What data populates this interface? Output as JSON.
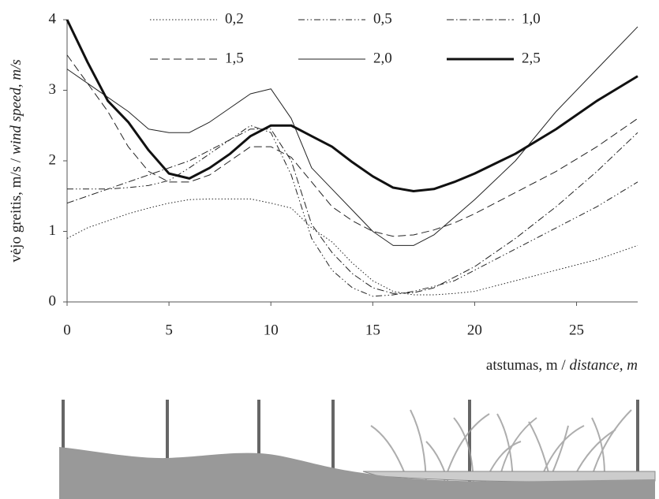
{
  "chart_data": {
    "type": "line",
    "ylabel": "vėjo greitis, m/s /",
    "ylabel_en": "wind speed, m/s",
    "xlabel": "atstumas, m /",
    "xlabel_en": "distance, m",
    "x": [
      0,
      1,
      2,
      3,
      4,
      5,
      6,
      7,
      8,
      9,
      10,
      11,
      12,
      13,
      14,
      15,
      16,
      17,
      18,
      19,
      20,
      22,
      24,
      26,
      28
    ],
    "xlim": [
      0,
      28
    ],
    "xticks": [
      0,
      5,
      10,
      15,
      20,
      25
    ],
    "ylim": [
      0,
      4
    ],
    "yticks": [
      0,
      1,
      2,
      3,
      4
    ],
    "series": [
      {
        "name": "0,2",
        "color": "#222",
        "width": 1,
        "dash": "1.5 2.5",
        "values": [
          0.9,
          1.05,
          1.15,
          1.25,
          1.33,
          1.4,
          1.45,
          1.46,
          1.46,
          1.46,
          1.4,
          1.33,
          1.05,
          0.85,
          0.55,
          0.3,
          0.15,
          0.1,
          0.1,
          0.12,
          0.15,
          0.3,
          0.45,
          0.6,
          0.8
        ]
      },
      {
        "name": "0,5",
        "color": "#222",
        "width": 1,
        "dash": "8 3 1.5 3 1.5 3",
        "values": [
          1.6,
          1.6,
          1.6,
          1.62,
          1.65,
          1.72,
          1.9,
          2.1,
          2.3,
          2.5,
          2.4,
          1.8,
          0.9,
          0.45,
          0.2,
          0.08,
          0.1,
          0.15,
          0.22,
          0.3,
          0.45,
          0.75,
          1.05,
          1.35,
          1.7
        ]
      },
      {
        "name": "1,0",
        "color": "#222",
        "width": 1,
        "dash": "9 3 1.5 3",
        "values": [
          1.4,
          1.5,
          1.6,
          1.7,
          1.8,
          1.9,
          2.0,
          2.15,
          2.3,
          2.45,
          2.45,
          2.0,
          1.1,
          0.7,
          0.4,
          0.2,
          0.12,
          0.13,
          0.2,
          0.35,
          0.5,
          0.9,
          1.35,
          1.85,
          2.4
        ]
      },
      {
        "name": "1,5",
        "color": "#222",
        "width": 1,
        "dash": "10 5",
        "values": [
          3.5,
          3.1,
          2.7,
          2.2,
          1.85,
          1.7,
          1.7,
          1.8,
          2.0,
          2.2,
          2.2,
          2.05,
          1.7,
          1.35,
          1.15,
          1.0,
          0.93,
          0.95,
          1.02,
          1.12,
          1.25,
          1.55,
          1.85,
          2.2,
          2.6
        ]
      },
      {
        "name": "2,0",
        "color": "#222",
        "width": 1,
        "dash": "none",
        "values": [
          3.3,
          3.1,
          2.9,
          2.7,
          2.45,
          2.4,
          2.4,
          2.55,
          2.75,
          2.95,
          3.02,
          2.6,
          1.9,
          1.6,
          1.3,
          1.0,
          0.8,
          0.8,
          0.95,
          1.2,
          1.45,
          2.0,
          2.7,
          3.3,
          3.9
        ]
      },
      {
        "name": "2,5",
        "color": "#111",
        "width": 3,
        "dash": "none",
        "values": [
          4.0,
          3.4,
          2.85,
          2.55,
          2.15,
          1.82,
          1.75,
          1.9,
          2.1,
          2.35,
          2.5,
          2.5,
          2.35,
          2.2,
          1.98,
          1.78,
          1.62,
          1.57,
          1.6,
          1.7,
          1.82,
          2.1,
          2.45,
          2.85,
          3.2
        ]
      }
    ]
  }
}
